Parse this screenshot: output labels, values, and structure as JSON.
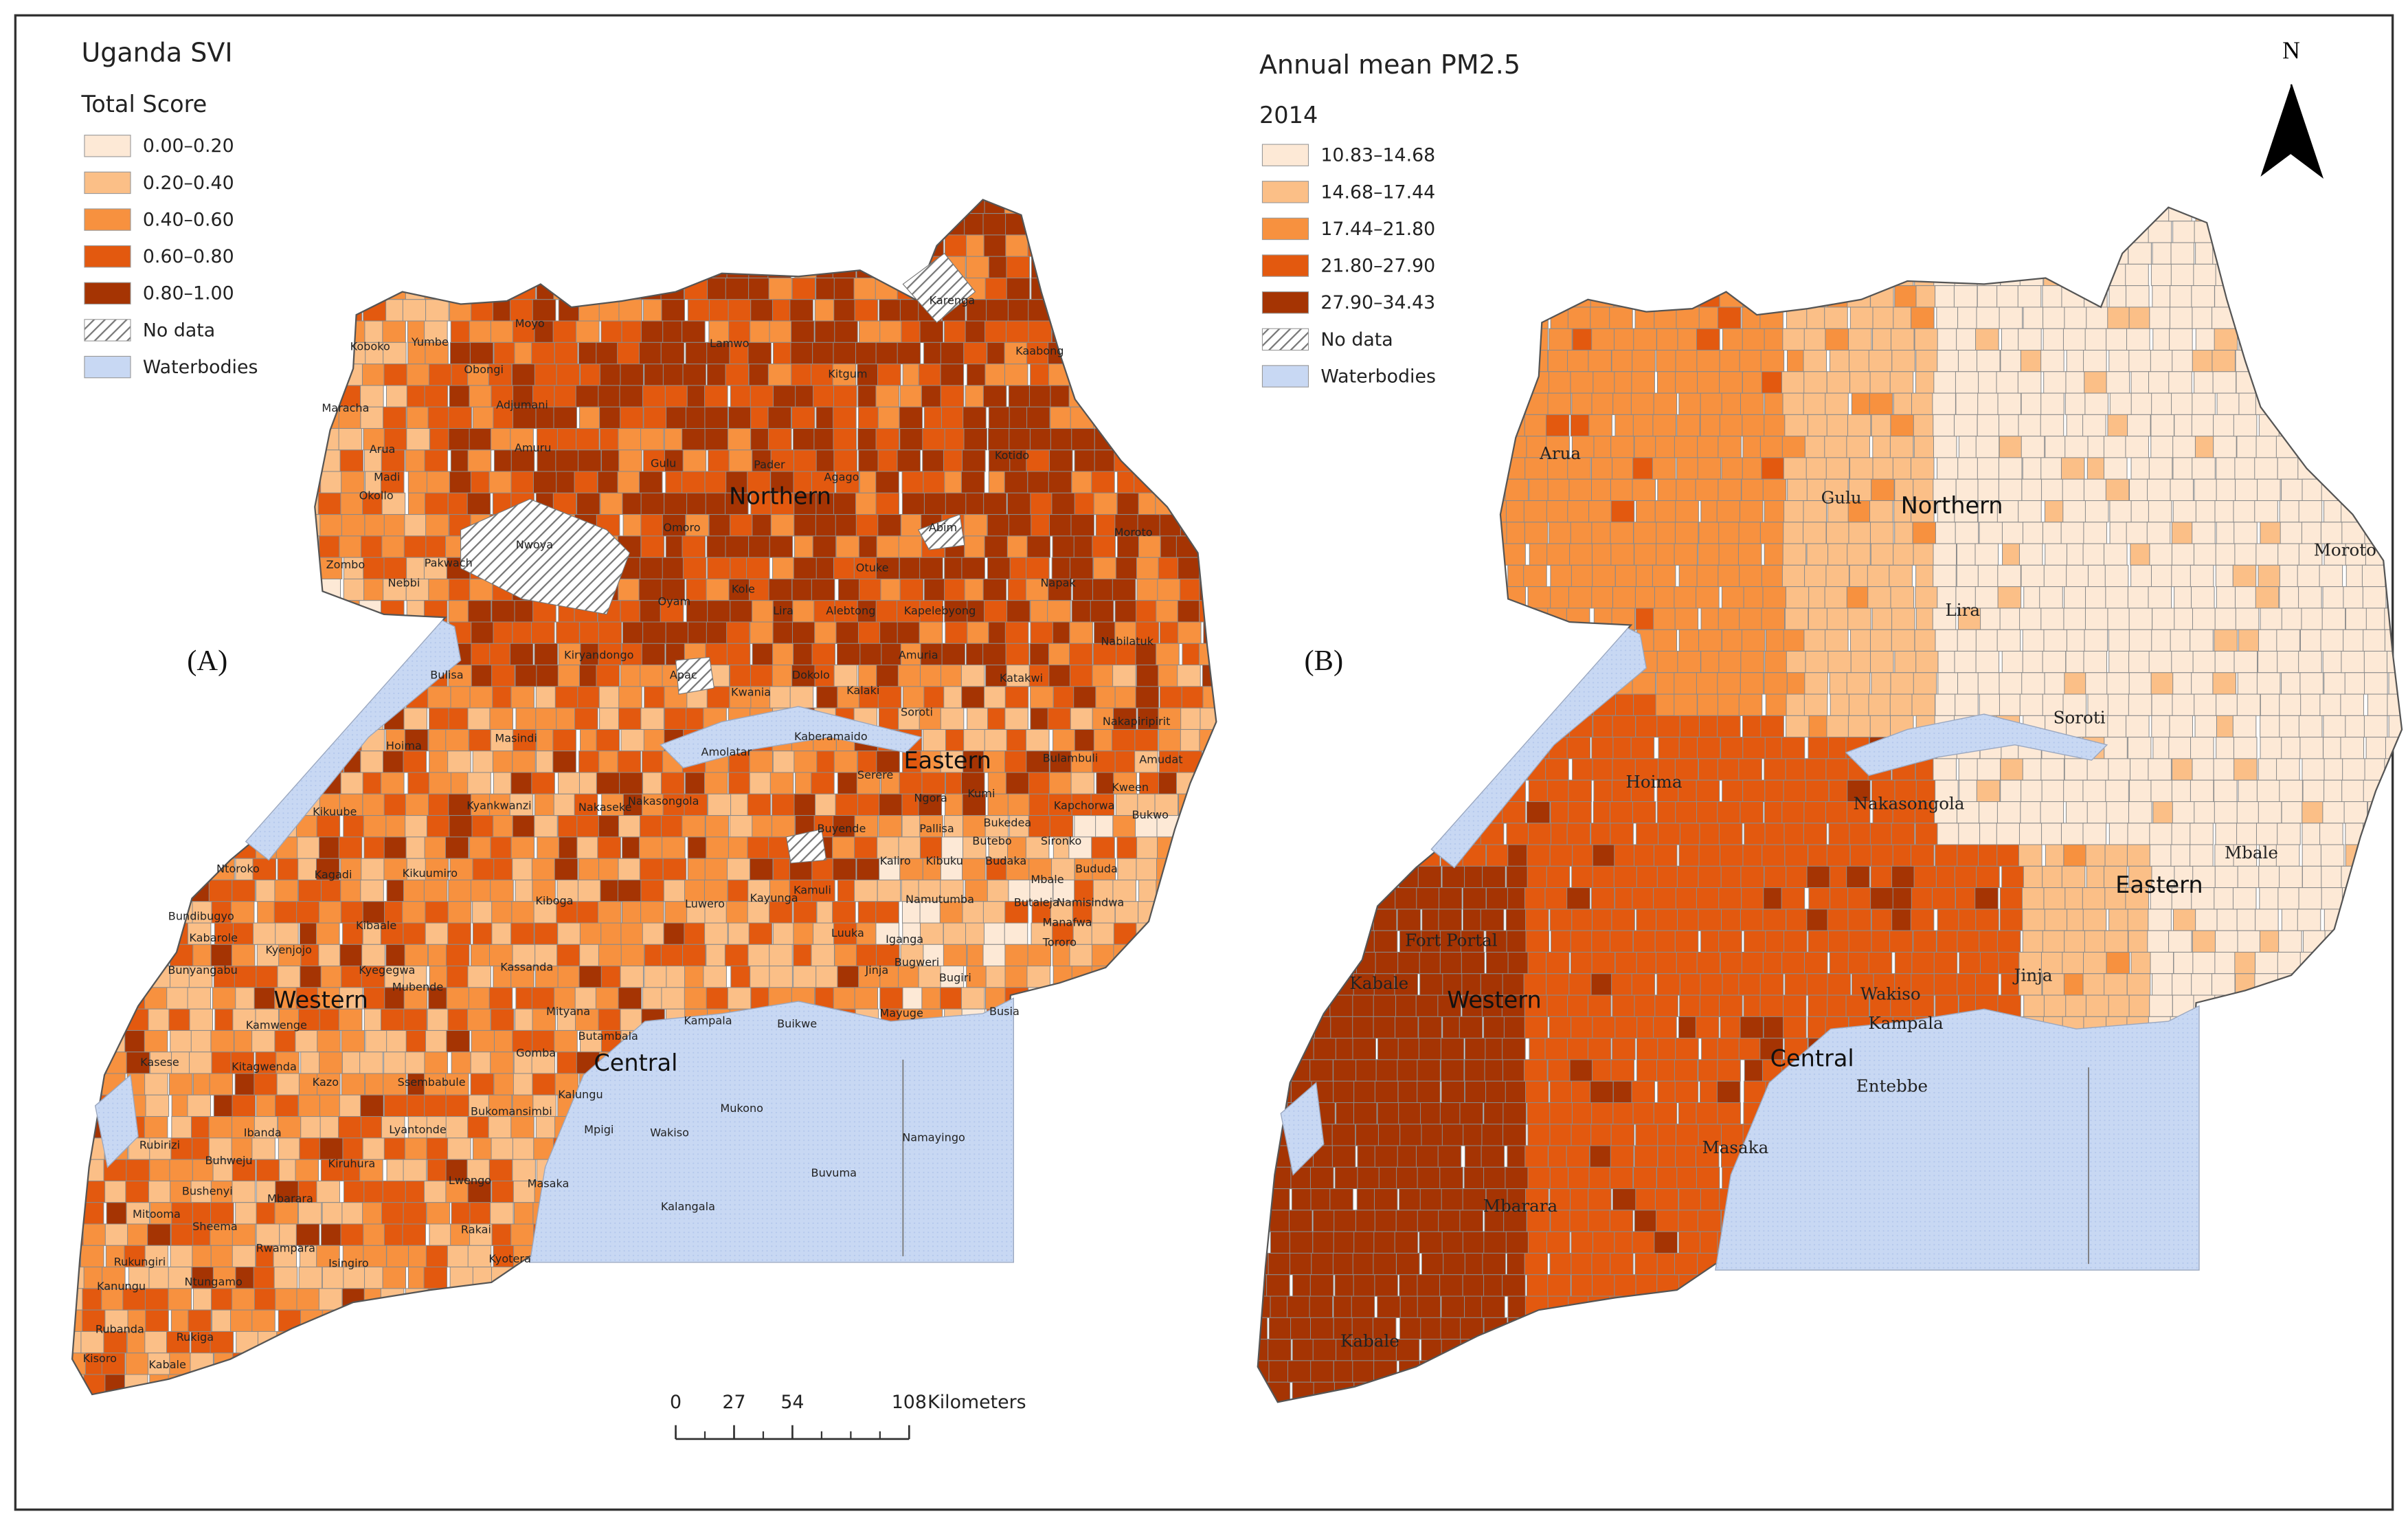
{
  "panel_a": {
    "label": "(A)",
    "title": "Uganda SVI",
    "subtitle": "Total Score",
    "classes": [
      {
        "label": "0.00–0.20",
        "color": "#fde9d6"
      },
      {
        "label": "0.20–0.40",
        "color": "#fbbf87"
      },
      {
        "label": "0.40–0.60",
        "color": "#f7913f"
      },
      {
        "label": "0.60–0.80",
        "color": "#e3590f"
      },
      {
        "label": "0.80–1.00",
        "color": "#a53403"
      }
    ],
    "no_data": "No data",
    "waterbodies": "Waterbodies",
    "water_color": "#c8d8f3",
    "regions": [
      "Northern",
      "Eastern",
      "Western",
      "Central"
    ],
    "places": [
      "Moyo",
      "Yumbe",
      "Koboko",
      "Obongi",
      "Lamwo",
      "Kitgum",
      "Karenga",
      "Kaabong",
      "Maracha",
      "Adjumani",
      "Amuru",
      "Arua",
      "Madi",
      "Okollo",
      "Gulu",
      "Pader",
      "Agago",
      "Kotido",
      "Zombo",
      "Nebbi",
      "Pakwach",
      "Nwoya",
      "Omoro",
      "Abim",
      "Moroto",
      "Otuke",
      "Napak",
      "Oyam",
      "Kole",
      "Lira",
      "Alebtong",
      "Kapelebyong",
      "Nabilatuk",
      "Apac",
      "Amuria",
      "Katakwi",
      "Kiryandongo",
      "Bulisa",
      "Kwania",
      "Dokolo",
      "Kalaki",
      "Nakapiripirit",
      "Hoima",
      "Masindi",
      "Amolatar",
      "Kaberamaido",
      "Soroti",
      "Bulambuli",
      "Amudat",
      "Kikuube",
      "Nakasongola",
      "Serere",
      "Ngora",
      "Kumi",
      "Kapchorwa",
      "Kween",
      "Bukwo",
      "Kyankwanzi",
      "Nakaseke",
      "Buyende",
      "Pallisa",
      "Bukedea",
      "Butebo",
      "Sironko",
      "Ntoroko",
      "Kagadi",
      "Kikuumiro",
      "Kiboga",
      "Luwero",
      "Kayunga",
      "Kamuli",
      "Kaliro",
      "Kibuku",
      "Budaka",
      "Mbale",
      "Bududa",
      "Namutumba",
      "Butaleja",
      "Namisindwa",
      "Bundibugyo",
      "Kabarole",
      "Bunyangabu",
      "Kibaale",
      "Kyenjojo",
      "Kyegegwa",
      "Luuka",
      "Iganga",
      "Manafwa",
      "Tororo",
      "Kassanda",
      "Mubende",
      "Bugweri",
      "Jinja",
      "Bugiri",
      "Kamwenge",
      "Mityana",
      "Butambala",
      "Kampala",
      "Buikwe",
      "Mayuge",
      "Busia",
      "Kasese",
      "Kitagwenda",
      "Gomba",
      "Kazo",
      "Ssembabule",
      "Kalungu",
      "Bukomansimbi",
      "Mukono",
      "Mpigi",
      "Wakiso",
      "Namayingo",
      "Lyantonde",
      "Ibanda",
      "Rubirizi",
      "Buhweju",
      "Kiruhura",
      "Buvuma",
      "Lwengo",
      "Masaka",
      "Bushenyi",
      "Mbarara",
      "Kalangala",
      "Mitooma",
      "Sheema",
      "Rakai",
      "Rwampara",
      "Kyotera",
      "Rukungiri",
      "Isingiro",
      "Ntungamo",
      "Kanungu",
      "Rubanda",
      "Rukiga",
      "Kisoro",
      "Kabale"
    ]
  },
  "panel_b": {
    "label": "(B)",
    "title": "Annual mean PM2.5",
    "subtitle": "2014",
    "classes": [
      {
        "label": "10.83–14.68",
        "color": "#fde9d6"
      },
      {
        "label": "14.68–17.44",
        "color": "#fbbf87"
      },
      {
        "label": "17.44–21.80",
        "color": "#f7913f"
      },
      {
        "label": "21.80–27.90",
        "color": "#e3590f"
      },
      {
        "label": "27.90–34.43",
        "color": "#a53403"
      }
    ],
    "no_data": "No data",
    "waterbodies": "Waterbodies",
    "water_color": "#c8d8f3",
    "regions": [
      "Northern",
      "Eastern",
      "Western",
      "Central"
    ],
    "places": [
      "Arua",
      "Gulu",
      "Moroto",
      "Lira",
      "Soroti",
      "Hoima",
      "Nakasongola",
      "Mbale",
      "Fort Portal",
      "Kabale",
      "Wakiso",
      "Jinja",
      "Kampala",
      "Entebbe",
      "Masaka",
      "Mbarara",
      "Kabale"
    ]
  },
  "scale_bar": {
    "ticks": [
      0,
      27,
      54,
      108
    ],
    "unit": "Kilometers"
  },
  "north": "N"
}
